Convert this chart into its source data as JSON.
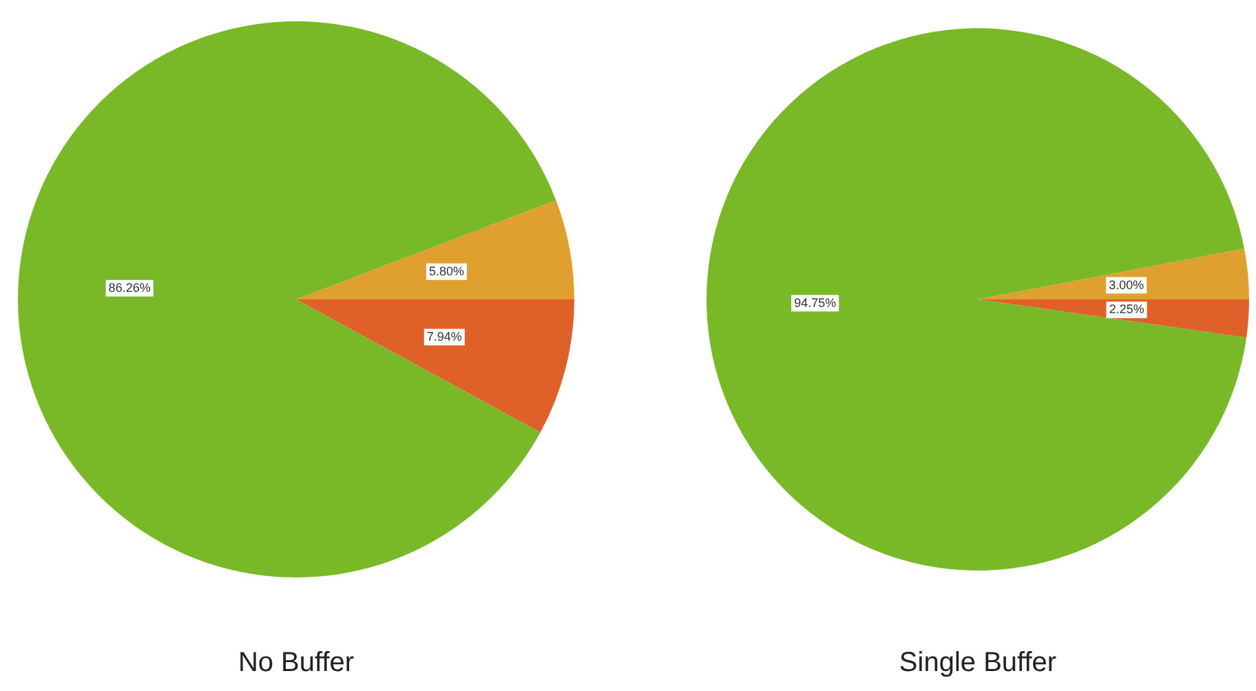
{
  "chart_data": [
    {
      "type": "pie",
      "title": "No Buffer",
      "categories": [
        null,
        null,
        null
      ],
      "values": [
        5.8,
        7.94,
        86.26
      ],
      "colors": [
        "#e0a030",
        "#e0602a",
        "#79b928"
      ],
      "value_labels": [
        "5.80%",
        "7.94%",
        "86.26%"
      ],
      "legend": false
    },
    {
      "type": "pie",
      "title": "Single Buffer",
      "categories": [
        null,
        null,
        null
      ],
      "values": [
        3.0,
        2.25,
        94.75
      ],
      "colors": [
        "#e0a030",
        "#e0602a",
        "#79b928"
      ],
      "value_labels": [
        "3.00%",
        "2.25%",
        "94.75%"
      ],
      "legend": false
    }
  ]
}
